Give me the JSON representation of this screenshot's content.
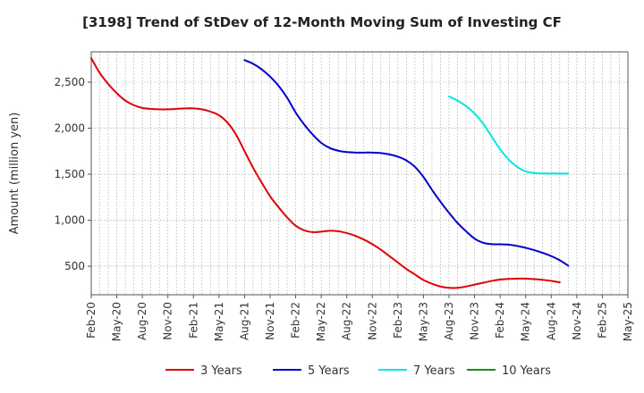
{
  "chart_data": {
    "type": "line",
    "title": "[3198]  Trend of StDev of 12-Month Moving Sum of Investing CF",
    "xlabel": "",
    "ylabel": "Amount (million yen)",
    "ylim": [
      190,
      2830
    ],
    "yticks": [
      500,
      1000,
      1500,
      2000,
      2500
    ],
    "ytick_labels": [
      "500",
      "1,000",
      "1,500",
      "2,000",
      "2,500"
    ],
    "x_tick_labels": [
      "Feb-20",
      "May-20",
      "Aug-20",
      "Nov-20",
      "Feb-21",
      "May-21",
      "Aug-21",
      "Nov-21",
      "Feb-22",
      "May-22",
      "Aug-22",
      "Nov-22",
      "Feb-23",
      "May-23",
      "Aug-23",
      "Nov-23",
      "Feb-24",
      "May-24",
      "Aug-24",
      "Nov-24",
      "Feb-25",
      "May-25"
    ],
    "grid": true,
    "legend_position": "bottom",
    "series": [
      {
        "name": "3 Years",
        "color": "#e00000",
        "values": [
          [
            0,
            2760
          ],
          [
            1,
            2600
          ],
          [
            2,
            2480
          ],
          [
            3,
            2380
          ],
          [
            4,
            2300
          ],
          [
            5,
            2250
          ],
          [
            6,
            2220
          ],
          [
            7,
            2210
          ],
          [
            8,
            2205
          ],
          [
            9,
            2205
          ],
          [
            10,
            2210
          ],
          [
            11,
            2215
          ],
          [
            12,
            2215
          ],
          [
            13,
            2205
          ],
          [
            14,
            2180
          ],
          [
            15,
            2140
          ],
          [
            16,
            2060
          ],
          [
            17,
            1930
          ],
          [
            18,
            1750
          ],
          [
            19,
            1570
          ],
          [
            20,
            1410
          ],
          [
            21,
            1260
          ],
          [
            22,
            1140
          ],
          [
            23,
            1030
          ],
          [
            24,
            940
          ],
          [
            25,
            890
          ],
          [
            26,
            870
          ],
          [
            27,
            875
          ],
          [
            28,
            885
          ],
          [
            29,
            880
          ],
          [
            30,
            860
          ],
          [
            31,
            830
          ],
          [
            32,
            790
          ],
          [
            33,
            740
          ],
          [
            34,
            680
          ],
          [
            35,
            610
          ],
          [
            36,
            540
          ],
          [
            37,
            470
          ],
          [
            38,
            410
          ],
          [
            39,
            350
          ],
          [
            40,
            310
          ],
          [
            41,
            280
          ],
          [
            42,
            265
          ],
          [
            43,
            265
          ],
          [
            44,
            280
          ],
          [
            45,
            300
          ],
          [
            46,
            320
          ],
          [
            47,
            340
          ],
          [
            48,
            355
          ],
          [
            49,
            362
          ],
          [
            50,
            365
          ],
          [
            51,
            365
          ],
          [
            52,
            360
          ],
          [
            53,
            352
          ],
          [
            54,
            340
          ],
          [
            55,
            325
          ]
        ]
      },
      {
        "name": "5 Years",
        "color": "#0000cc",
        "values": [
          [
            18,
            2740
          ],
          [
            19,
            2700
          ],
          [
            20,
            2640
          ],
          [
            21,
            2560
          ],
          [
            22,
            2460
          ],
          [
            23,
            2330
          ],
          [
            24,
            2170
          ],
          [
            25,
            2040
          ],
          [
            26,
            1930
          ],
          [
            27,
            1840
          ],
          [
            28,
            1785
          ],
          [
            29,
            1755
          ],
          [
            30,
            1740
          ],
          [
            31,
            1735
          ],
          [
            32,
            1735
          ],
          [
            33,
            1735
          ],
          [
            34,
            1730
          ],
          [
            35,
            1715
          ],
          [
            36,
            1690
          ],
          [
            37,
            1650
          ],
          [
            38,
            1580
          ],
          [
            39,
            1470
          ],
          [
            40,
            1330
          ],
          [
            41,
            1200
          ],
          [
            42,
            1080
          ],
          [
            43,
            970
          ],
          [
            44,
            880
          ],
          [
            45,
            800
          ],
          [
            46,
            755
          ],
          [
            47,
            740
          ],
          [
            48,
            738
          ],
          [
            49,
            735
          ],
          [
            50,
            720
          ],
          [
            51,
            700
          ],
          [
            52,
            675
          ],
          [
            53,
            645
          ],
          [
            54,
            610
          ],
          [
            55,
            565
          ],
          [
            56,
            505
          ]
        ]
      },
      {
        "name": "7 Years",
        "color": "#00e5e5",
        "values": [
          [
            42,
            2345
          ],
          [
            43,
            2300
          ],
          [
            44,
            2240
          ],
          [
            45,
            2160
          ],
          [
            46,
            2050
          ],
          [
            47,
            1910
          ],
          [
            48,
            1770
          ],
          [
            49,
            1660
          ],
          [
            50,
            1580
          ],
          [
            51,
            1530
          ],
          [
            52,
            1513
          ],
          [
            53,
            1508
          ],
          [
            54,
            1507
          ],
          [
            55,
            1507
          ],
          [
            56,
            1506
          ]
        ]
      },
      {
        "name": "10 Years",
        "color": "#1a8a1a",
        "values": []
      }
    ]
  }
}
